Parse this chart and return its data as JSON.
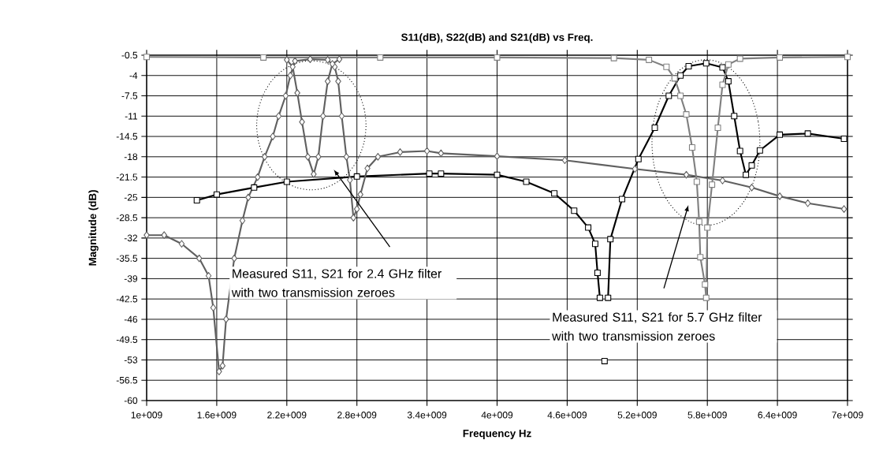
{
  "chart_data": {
    "type": "line",
    "title": "S11(dB), S22(dB) and S21(dB) vs Freq.",
    "xlabel": "Frequency Hz",
    "ylabel": "Magnitude (dB)",
    "xlim": [
      1000000000.0,
      7000000000.0
    ],
    "xticks": [
      {
        "value": 1000000000.0,
        "label": "1e+009"
      },
      {
        "value": 1600000000.0,
        "label": "1.6e+009"
      },
      {
        "value": 2200000000.0,
        "label": "2.2e+009"
      },
      {
        "value": 2800000000.0,
        "label": "2.8e+009"
      },
      {
        "value": 3400000000.0,
        "label": "3.4e+009"
      },
      {
        "value": 4000000000.0,
        "label": "4e+009"
      },
      {
        "value": 4600000000.0,
        "label": "4.6e+009"
      },
      {
        "value": 5200000000.0,
        "label": "5.2e+009"
      },
      {
        "value": 5800000000.0,
        "label": "5.8e+009"
      },
      {
        "value": 6400000000.0,
        "label": "6.4e+009"
      },
      {
        "value": 7000000000.0,
        "label": "7e+009"
      }
    ],
    "ylim": [
      -60,
      -0.5
    ],
    "yticks": [
      -0.5,
      -4,
      -7.5,
      -11,
      -14.5,
      -18,
      -21.5,
      -25,
      -28.5,
      -32,
      -35.5,
      -39,
      -42.5,
      -46,
      -49.5,
      -53,
      -56.5,
      -60
    ],
    "grid": true,
    "series": [
      {
        "color": "#606060",
        "marker": "diamond",
        "x": [
          1000000000.0,
          1150000000.0,
          1300000000.0,
          1450000000.0,
          1530000000.0,
          1570000000.0,
          1620000000.0,
          1650000000.0,
          1680000000.0,
          1750000000.0,
          1820000000.0,
          1870000000.0,
          1950000000.0,
          2010000000.0,
          2080000000.0,
          2130000000.0,
          2190000000.0,
          2230000000.0,
          2270000000.0,
          2400000000.0,
          2550000000.0,
          2610000000.0,
          2640000000.0,
          2670000000.0,
          2710000000.0,
          2740000000.0,
          2770000000.0,
          2800000000.0,
          2830000000.0,
          2890000000.0,
          2980000000.0,
          3170000000.0,
          3400000000.0,
          3520000000.0,
          4000000000.0,
          4580000000.0,
          5180000000.0,
          5620000000.0,
          5930000000.0,
          6180000000.0,
          6420000000.0,
          6660000000.0,
          6970000000.0
        ],
        "values": [
          -31.5,
          -31.5,
          -33,
          -35.5,
          -38.5,
          -44,
          -55,
          -54,
          -46,
          -35.5,
          -29,
          -25,
          -21.5,
          -18,
          -14.5,
          -11,
          -7.5,
          -4,
          -1.5,
          -1.2,
          -1.3,
          -2.5,
          -5,
          -11,
          -18,
          -22,
          -28.5,
          -27,
          -24.5,
          -20,
          -18,
          -17.2,
          -17,
          -17.4,
          -17.9,
          -18.6,
          -20.1,
          -21.1,
          -22.1,
          -23.3,
          -24.8,
          -26,
          -27
        ]
      },
      {
        "color": "#606060",
        "marker": "diamond",
        "x": [
          2200000000.0,
          2250000000.0,
          2290000000.0,
          2330000000.0,
          2380000000.0,
          2430000000.0,
          2470000000.0,
          2510000000.0,
          2550000000.0,
          2590000000.0,
          2650000000.0
        ],
        "values": [
          -1.3,
          -2.5,
          -7,
          -12,
          -18,
          -21,
          -18,
          -11,
          -5,
          -2,
          -1.2
        ]
      },
      {
        "color": "#000000",
        "marker": "square",
        "x": [
          1430000000.0,
          1600000000.0,
          1920000000.0,
          2200000000.0,
          2800000000.0,
          3420000000.0,
          3520000000.0,
          4000000000.0,
          4250000000.0,
          4490000000.0,
          4660000000.0,
          4780000000.0,
          4840000000.0,
          4860000000.0,
          4880000000.0,
          4900000000.0,
          4920000000.0,
          4935000000.0,
          4950000000.0,
          4970000000.0,
          5070000000.0,
          5210000000.0,
          5350000000.0,
          5470000000.0,
          5570000000.0,
          5640000000.0,
          5790000000.0,
          5930000000.0,
          5980000000.0,
          6030000000.0,
          6080000000.0,
          6130000000.0,
          6180000000.0,
          6250000000.0,
          6420000000.0,
          6660000000.0,
          6970000000.0
        ],
        "values": [
          -25.5,
          -24.5,
          -23.3,
          -22.3,
          -21.4,
          -20.9,
          -20.9,
          -21.1,
          -22.3,
          -24.3,
          -27.3,
          -30.2,
          -33,
          -38,
          -42.3,
          null,
          -53.2,
          null,
          -42.3,
          -32.2,
          -25.3,
          -18.4,
          -13,
          -7.5,
          -4,
          -2.4,
          -1.9,
          -2.6,
          -5,
          -11,
          -17,
          -21.1,
          -19.5,
          -16.9,
          -14.2,
          -14,
          -14.9
        ]
      },
      {
        "color": "#808080",
        "marker": "square",
        "x": [
          1000000000.0,
          2000000000.0,
          3000000000.0,
          4000000000.0,
          5000000000.0,
          5300000000.0,
          5450000000.0,
          5520000000.0,
          5570000000.0,
          5620000000.0,
          5670000000.0,
          5710000000.0,
          5730000000.0,
          5740000000.0,
          5780000000.0,
          5790000000.0,
          5800000000.0,
          5840000000.0,
          5890000000.0,
          5930000000.0,
          5980000000.0,
          6080000000.0,
          6420000000.0,
          7000000000.0
        ],
        "values": [
          -0.8,
          -0.9,
          -0.9,
          -0.9,
          -1.0,
          -1.3,
          -2.5,
          -4.5,
          -7.5,
          -10.7,
          -16.4,
          -22.3,
          -29.2,
          -35.3,
          -40,
          -42.3,
          -30.2,
          -22.8,
          -13,
          -5.6,
          -2.1,
          -1.1,
          -0.9,
          -0.8
        ]
      }
    ],
    "annotations": [
      "Measured S11, S21 for 2.4 GHz filter with two transmission zeroes",
      "Measured S11, S21 for 5.7 GHz filter with two transmission zeroes"
    ]
  }
}
